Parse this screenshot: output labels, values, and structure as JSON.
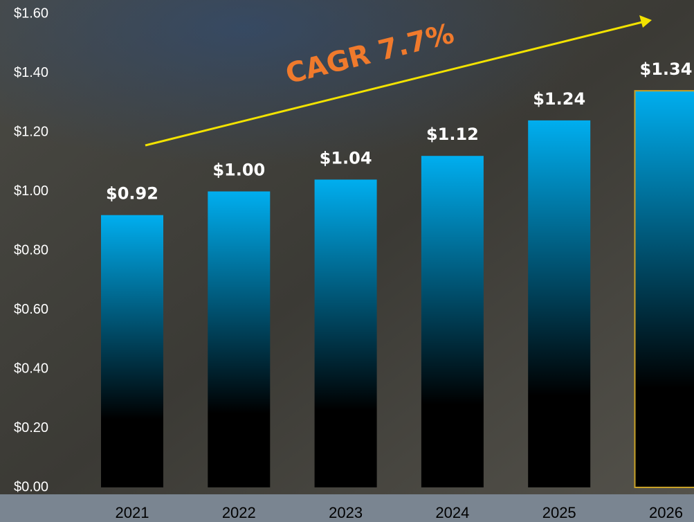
{
  "chart_data": {
    "type": "bar",
    "categories": [
      "2021",
      "2022",
      "2023",
      "2024",
      "2025",
      "2026"
    ],
    "values": [
      0.92,
      1.0,
      1.04,
      1.12,
      1.24,
      1.34
    ],
    "value_labels": [
      "$0.92",
      "$1.00",
      "$1.04",
      "$1.12",
      "$1.24",
      "$1.34"
    ],
    "color": "#00aeef",
    "edgecolors": [
      null,
      null,
      null,
      null,
      null,
      "#c9a227"
    ],
    "ylim": [
      0,
      1.6
    ],
    "yticks": [
      {
        "value": 0,
        "label": "$0.00"
      },
      {
        "value": 0.2,
        "label": "$0.20"
      },
      {
        "value": 0.4,
        "label": "$0.40"
      },
      {
        "value": 0.6,
        "label": "$0.60"
      },
      {
        "value": 0.8,
        "label": "$0.80"
      },
      {
        "value": 1.0,
        "label": "$1.00"
      },
      {
        "value": 1.2,
        "label": "$1.20"
      },
      {
        "value": 1.4,
        "label": "$1.40"
      },
      {
        "value": 1.6,
        "label": "$1.60"
      }
    ],
    "annotation": "CAGR 7.7%",
    "grid": false
  }
}
